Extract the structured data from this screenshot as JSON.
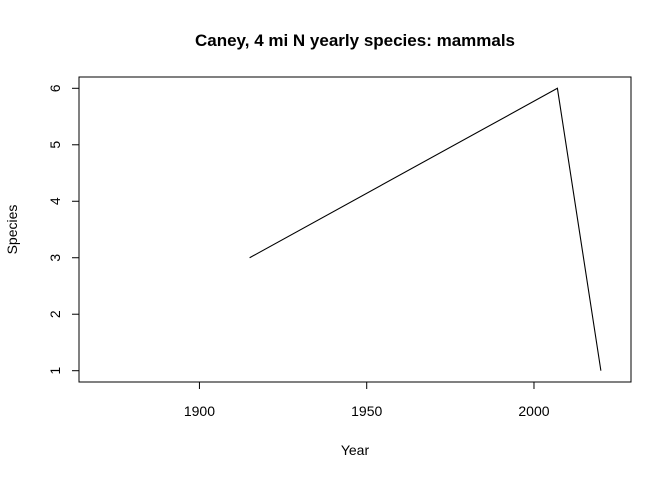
{
  "chart_data": {
    "type": "line",
    "title": "Caney, 4 mi N yearly species: mammals",
    "xlabel": "Year",
    "ylabel": "Species",
    "xlim": [
      1864,
      2029
    ],
    "ylim": [
      0.8,
      6.2
    ],
    "xticks": [
      1900,
      1950,
      2000
    ],
    "yticks": [
      1,
      2,
      3,
      4,
      5,
      6
    ],
    "grid": false,
    "legend": "none",
    "series": [
      {
        "x": [
          1915,
          2007,
          2020
        ],
        "y": [
          3,
          6,
          1
        ]
      }
    ]
  }
}
